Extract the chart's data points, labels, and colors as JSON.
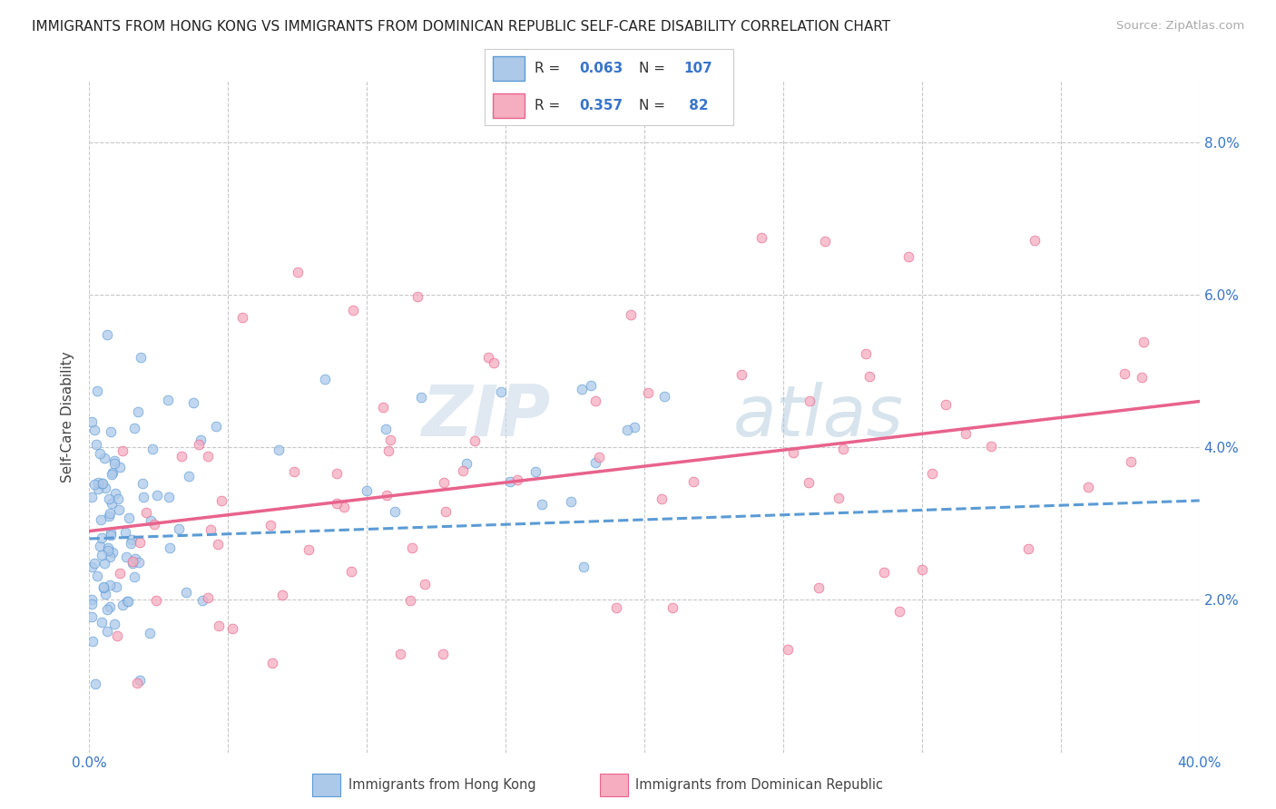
{
  "title": "IMMIGRANTS FROM HONG KONG VS IMMIGRANTS FROM DOMINICAN REPUBLIC SELF-CARE DISABILITY CORRELATION CHART",
  "source": "Source: ZipAtlas.com",
  "ylabel": "Self-Care Disability",
  "y_ticks": [
    "2.0%",
    "4.0%",
    "6.0%",
    "8.0%"
  ],
  "y_tick_vals": [
    0.02,
    0.04,
    0.06,
    0.08
  ],
  "xlim": [
    0.0,
    0.4
  ],
  "ylim": [
    0.0,
    0.088
  ],
  "color_hk": "#adc9ea",
  "color_dr": "#f5adc0",
  "line_color_hk": "#5b9bd5",
  "line_color_dr": "#e8638c",
  "background_color": "#ffffff",
  "grid_color": "#c8c8c8",
  "hk_trend_start": 0.028,
  "hk_trend_end": 0.033,
  "dr_trend_start": 0.029,
  "dr_trend_end": 0.046
}
